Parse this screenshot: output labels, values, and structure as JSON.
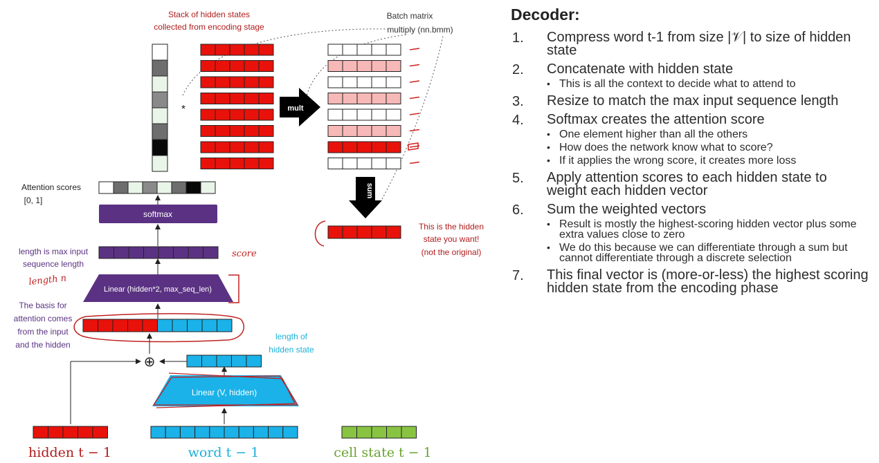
{
  "diagram": {
    "stack_label": [
      "Stack of hidden states",
      "collected from encoding stage"
    ],
    "bmm_label": [
      "Batch matrix",
      "multiply (nn.bmm)"
    ],
    "star": "*",
    "mult_label": "mult",
    "sum_label": "sum",
    "result_label": [
      "This is the hidden",
      "state you want!",
      "(not the original)"
    ],
    "attention_scores_label": [
      "Attention scores",
      "[0, 1]"
    ],
    "softmax_label": "softmax",
    "length_label": [
      "length is max input",
      "sequence length"
    ],
    "linear_top_label": "Linear (hidden*2, max_seq_len)",
    "basis_label": [
      "The basis for",
      "attention comes",
      "from the input",
      "and the hidden"
    ],
    "hidden_len_label": [
      "length of",
      "hidden state"
    ],
    "plus_symbol": "⊕",
    "linear_bottom_label": "Linear (V, hidden)",
    "bottom_labels": {
      "hidden": "hidden t − 1",
      "word": "word t − 1",
      "cell": "cell state t − 1"
    },
    "annotations": {
      "score": "score",
      "length": "length n"
    },
    "colors": {
      "red": "#e8120b",
      "pink": "#f7b8b8",
      "blue": "#1ab2e8",
      "green": "#88c442",
      "purple": "#5b3283",
      "darkred": "#b01c1c",
      "cyan": "#1bb0d8",
      "black_arrow": "#000000"
    },
    "score_shades": [
      "#ffffff",
      "#6e6e6e",
      "#eaf5ea",
      "#8a8a8a",
      "#eaf5ea",
      "#6e6e6e",
      "#080808",
      "#eaf5ea"
    ],
    "weighted_rows": [
      "white",
      "pink",
      "white",
      "pink",
      "white",
      "pink",
      "red",
      "white"
    ]
  },
  "notes": {
    "title": "Decoder:",
    "steps": [
      {
        "num": "1.",
        "text": "Compress word t-1 from size |𝒱| to size of hidden state",
        "subs": []
      },
      {
        "num": "2.",
        "text": "Concatenate with hidden state",
        "subs": [
          "This is all the context to decide what to attend to"
        ]
      },
      {
        "num": "3.",
        "text": "Resize to match the max input sequence length",
        "subs": []
      },
      {
        "num": "4.",
        "text": "Softmax creates the attention score",
        "subs": [
          "One element higher than all the others",
          "How does the network know what to score?",
          "If it applies the wrong score, it creates more loss"
        ]
      },
      {
        "num": "5.",
        "text": "Apply attention scores to each hidden state to weight each hidden vector",
        "subs": []
      },
      {
        "num": "6.",
        "text": "Sum the weighted vectors",
        "subs": [
          "Result is mostly the highest-scoring hidden vector plus some extra values close to zero",
          "We do this because we can differentiate through a sum but cannot differentiate through a discrete selection"
        ]
      },
      {
        "num": "7.",
        "text": "This final vector is (more-or-less) the highest scoring hidden state from the encoding phase",
        "subs": []
      }
    ]
  }
}
